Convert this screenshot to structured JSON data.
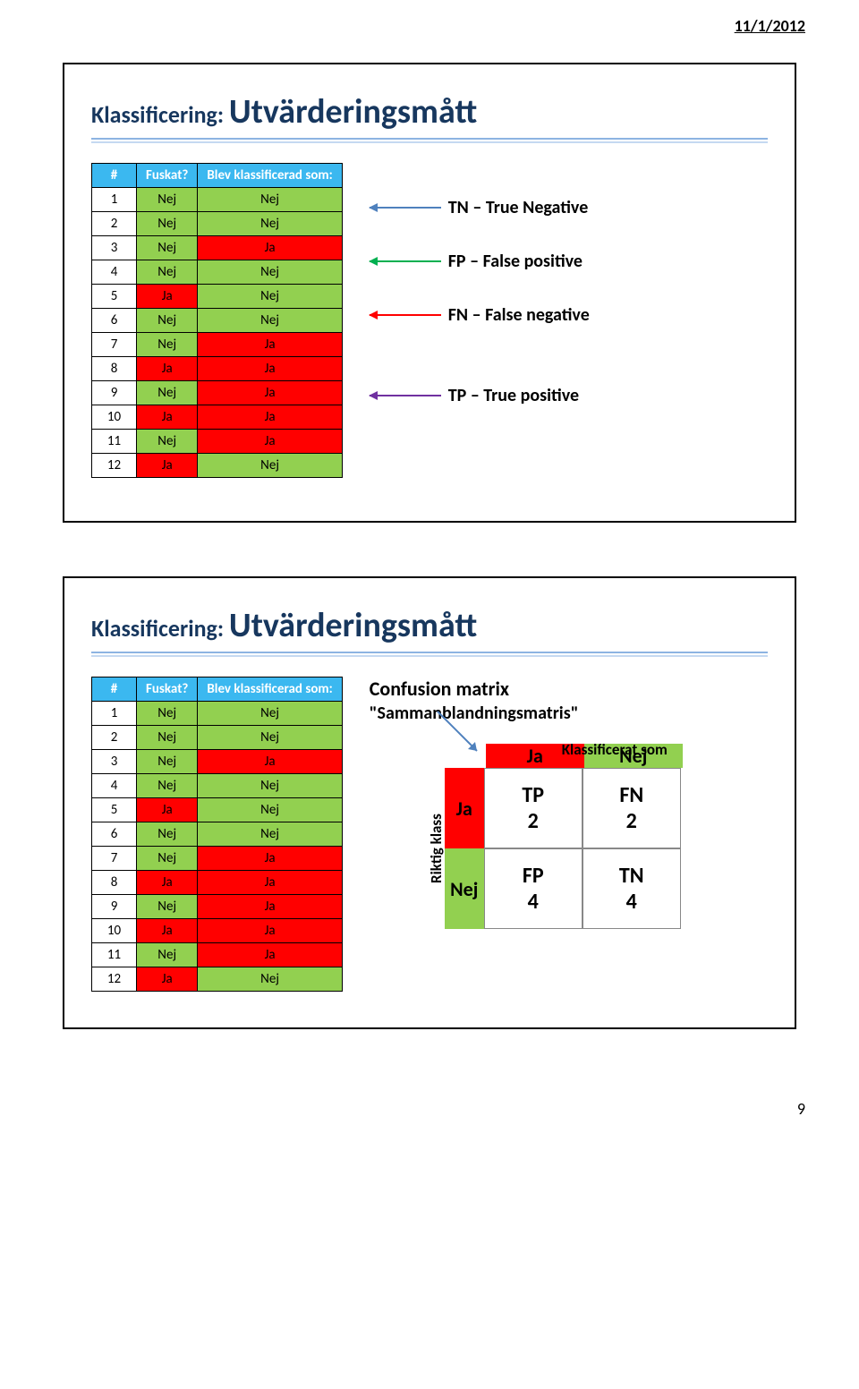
{
  "date": "11/1/2012",
  "page_number": "9",
  "colors": {
    "header_bg": "#3bb8f0",
    "header_fg": "#ffffff",
    "nej_bg": "#92d050",
    "ja_bg": "#ff0000",
    "title_color": "#17375e",
    "underline1": "#8db4e2",
    "underline2": "#c5d9f1",
    "arrow_tn": "#4f81bd",
    "arrow_fp": "#00b050",
    "arrow_fn": "#ff0000",
    "arrow_tp": "#7030a0",
    "cm_arrow": "#4f81bd"
  },
  "slide1": {
    "title_prefix": "Klassificering: ",
    "title_main": "Utvärderingsmått",
    "columns": [
      "#",
      "Fuskat?",
      "Blev klassificerad som:"
    ],
    "rows": [
      {
        "n": "1",
        "a": "Nej",
        "b": "Nej"
      },
      {
        "n": "2",
        "a": "Nej",
        "b": "Nej"
      },
      {
        "n": "3",
        "a": "Nej",
        "b": "Ja"
      },
      {
        "n": "4",
        "a": "Nej",
        "b": "Nej"
      },
      {
        "n": "5",
        "a": "Ja",
        "b": "Nej"
      },
      {
        "n": "6",
        "a": "Nej",
        "b": "Nej"
      },
      {
        "n": "7",
        "a": "Nej",
        "b": "Ja"
      },
      {
        "n": "8",
        "a": "Ja",
        "b": "Ja"
      },
      {
        "n": "9",
        "a": "Nej",
        "b": "Ja"
      },
      {
        "n": "10",
        "a": "Ja",
        "b": "Ja"
      },
      {
        "n": "11",
        "a": "Nej",
        "b": "Ja"
      },
      {
        "n": "12",
        "a": "Ja",
        "b": "Nej"
      }
    ],
    "annotations": {
      "tn": "TN – True Negative",
      "fp": "FP – False positive",
      "fn": "FN – False negative",
      "tp": "TP – True positive"
    }
  },
  "slide2": {
    "title_prefix": "Klassificering: ",
    "title_main": "Utvärderingsmått",
    "columns": [
      "#",
      "Fuskat?",
      "Blev klassificerad som:"
    ],
    "rows": [
      {
        "n": "1",
        "a": "Nej",
        "b": "Nej"
      },
      {
        "n": "2",
        "a": "Nej",
        "b": "Nej"
      },
      {
        "n": "3",
        "a": "Nej",
        "b": "Ja"
      },
      {
        "n": "4",
        "a": "Nej",
        "b": "Nej"
      },
      {
        "n": "5",
        "a": "Ja",
        "b": "Nej"
      },
      {
        "n": "6",
        "a": "Nej",
        "b": "Nej"
      },
      {
        "n": "7",
        "a": "Nej",
        "b": "Ja"
      },
      {
        "n": "8",
        "a": "Ja",
        "b": "Ja"
      },
      {
        "n": "9",
        "a": "Nej",
        "b": "Ja"
      },
      {
        "n": "10",
        "a": "Ja",
        "b": "Ja"
      },
      {
        "n": "11",
        "a": "Nej",
        "b": "Ja"
      },
      {
        "n": "12",
        "a": "Ja",
        "b": "Nej"
      }
    ],
    "cm": {
      "title": "Confusion matrix",
      "subtitle": "\"Sammanblandningsmatris\"",
      "klass_label": "Klassificerat som",
      "riktig_label": "Riktig klass",
      "col_labels": [
        "Ja",
        "Nej"
      ],
      "row_labels": [
        "Ja",
        "Nej"
      ],
      "cells": [
        {
          "t": "TP",
          "v": "2"
        },
        {
          "t": "FN",
          "v": "2"
        },
        {
          "t": "FP",
          "v": "4"
        },
        {
          "t": "TN",
          "v": "4"
        }
      ]
    }
  }
}
